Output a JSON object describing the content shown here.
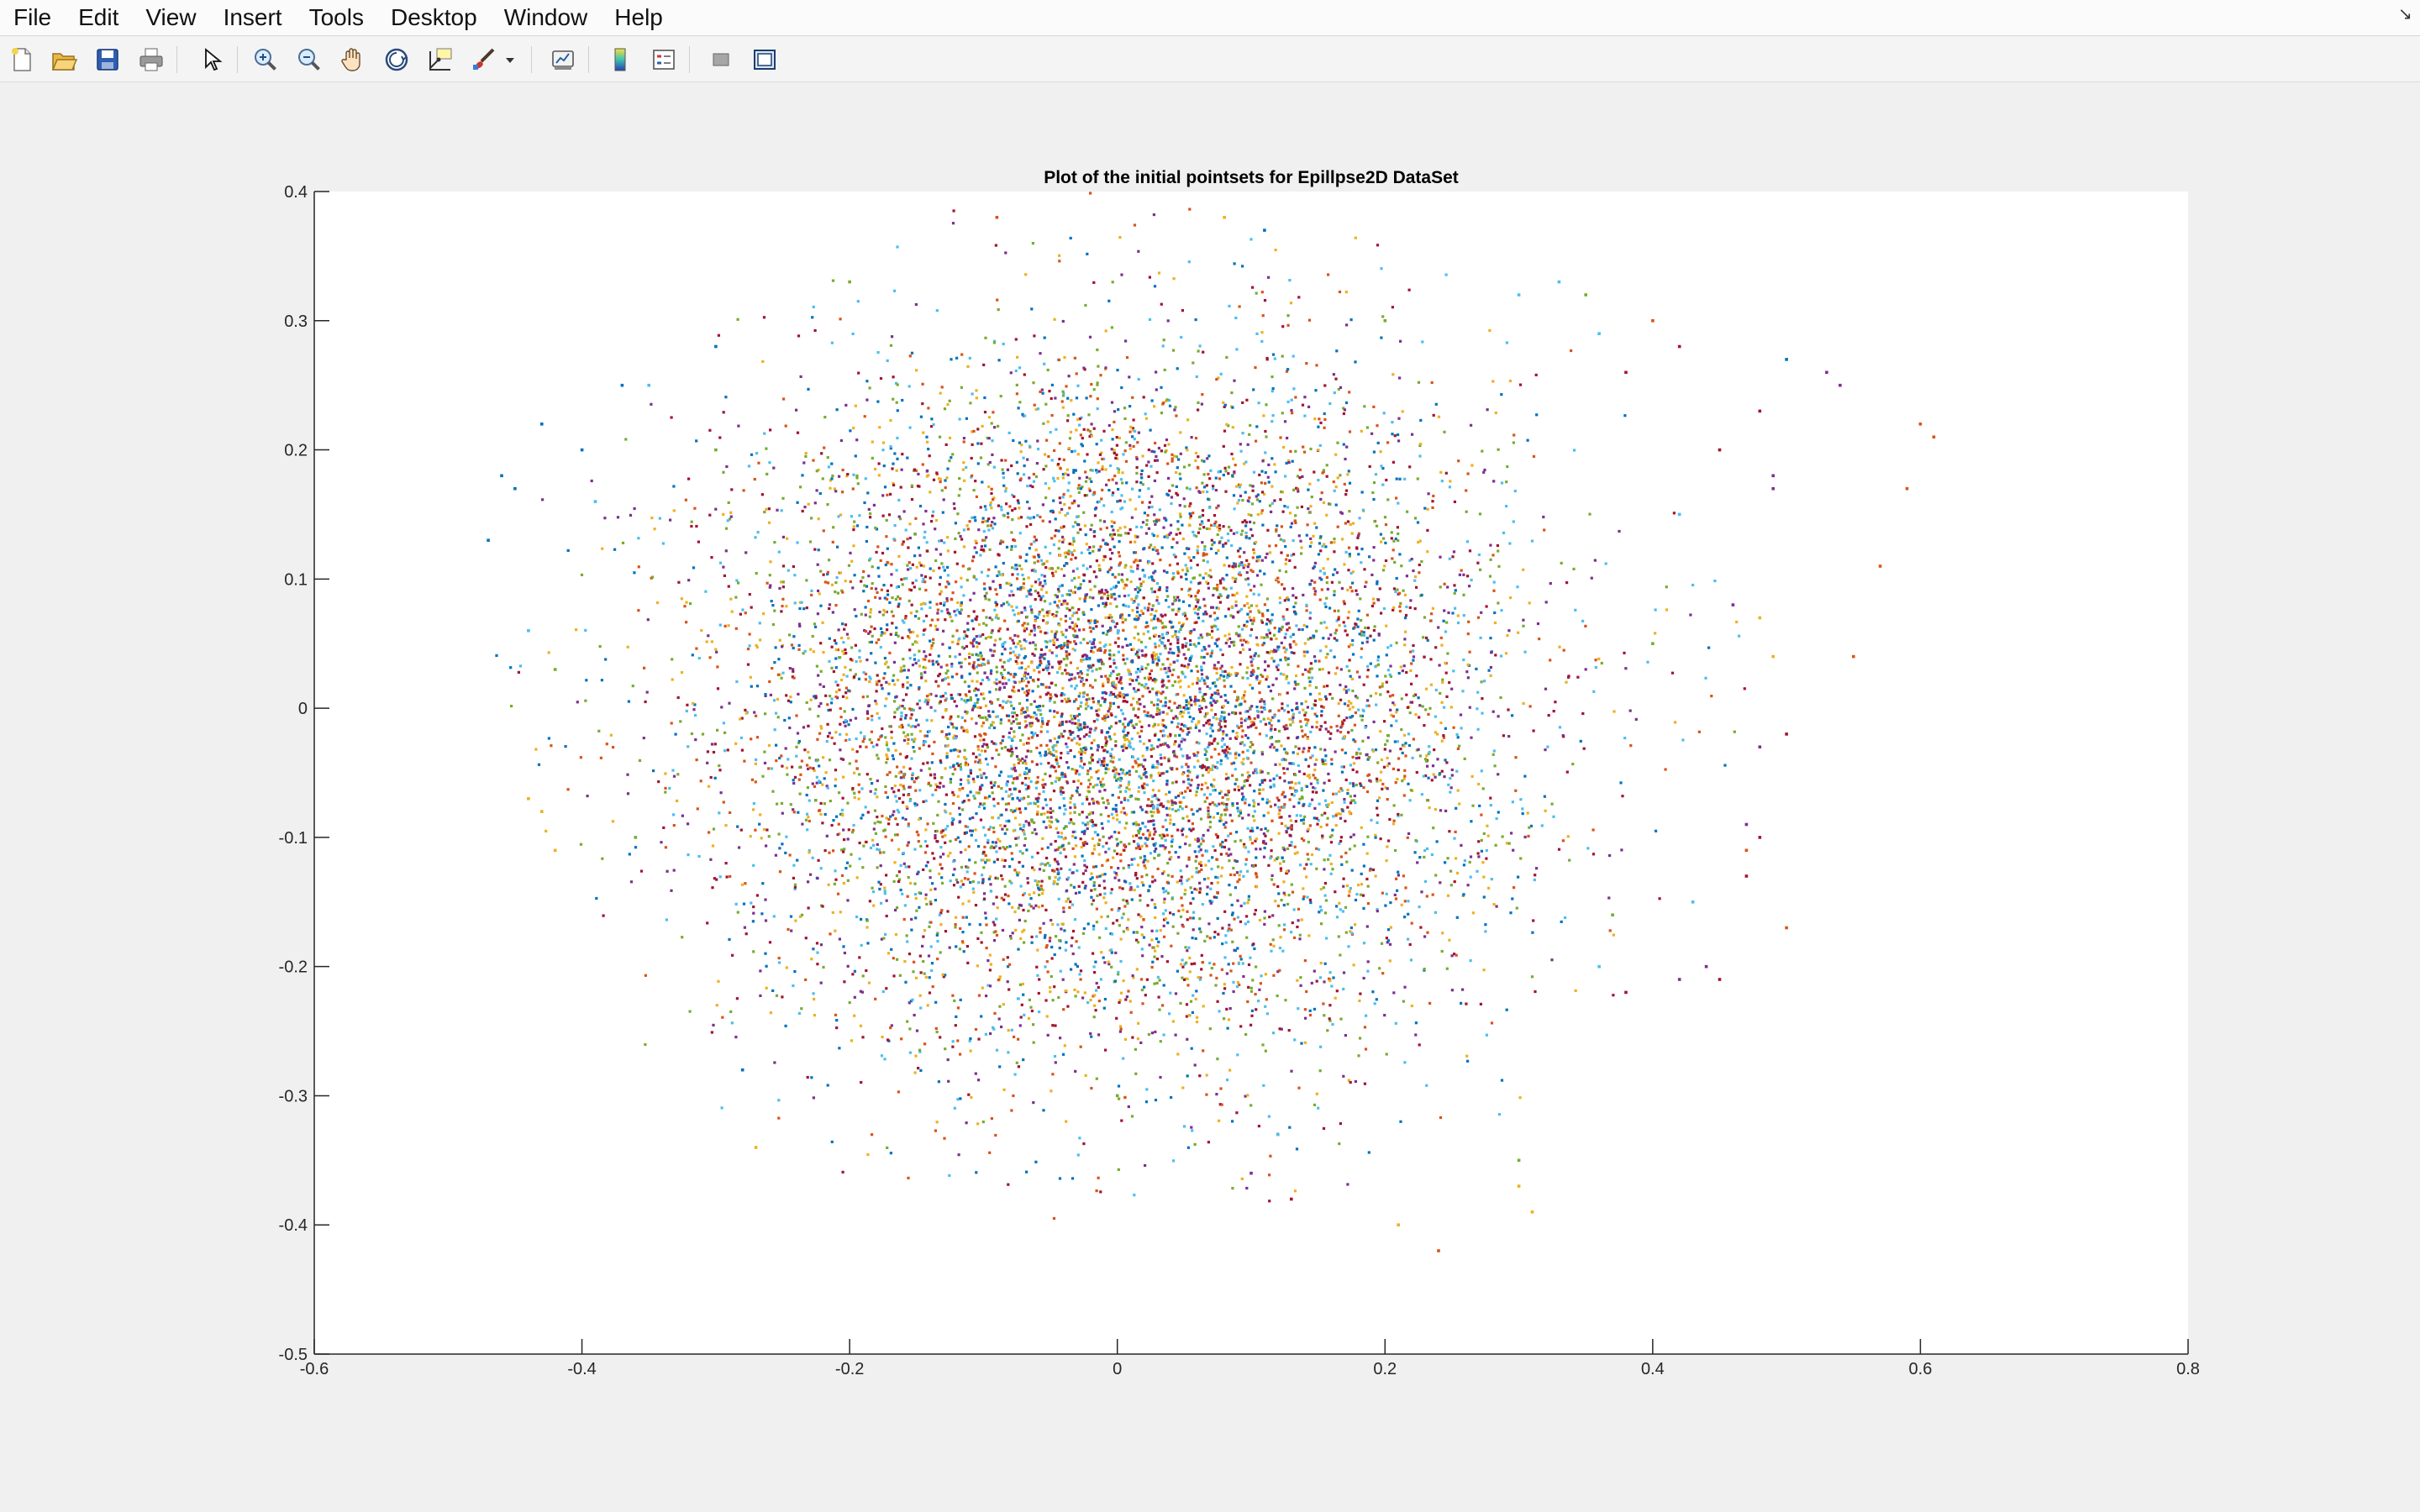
{
  "menubar": {
    "items": [
      {
        "label": "File"
      },
      {
        "label": "Edit"
      },
      {
        "label": "View"
      },
      {
        "label": "Insert"
      },
      {
        "label": "Tools"
      },
      {
        "label": "Desktop"
      },
      {
        "label": "Window"
      },
      {
        "label": "Help"
      }
    ]
  },
  "toolbar": {
    "icons": [
      "new-figure-icon",
      "open-file-icon",
      "save-icon",
      "print-icon",
      "select-arrow-icon",
      "zoom-in-icon",
      "zoom-out-icon",
      "pan-hand-icon",
      "rotate-3d-icon",
      "data-cursor-icon",
      "brush-icon",
      "brush-dropdown-icon",
      "link-plot-icon",
      "colorbar-icon",
      "legend-icon",
      "hide-plot-tools-icon",
      "show-plot-tools-icon"
    ]
  },
  "colors": {
    "palette": [
      "#0072BD",
      "#D95319",
      "#EDB120",
      "#7E2F8E",
      "#77AC30",
      "#4DBEEE",
      "#A2142F"
    ],
    "axes_bg": "#ffffff",
    "figure_bg": "#f0f0f0"
  },
  "chart_data": {
    "type": "scatter",
    "title": "Plot of the initial pointsets for Epillpse2D DataSet",
    "xlabel": "",
    "ylabel": "",
    "xlim": [
      -0.6,
      0.8
    ],
    "ylim": [
      -0.5,
      0.4
    ],
    "xticks": [
      -0.6,
      -0.4,
      -0.2,
      0,
      0.2,
      0.4,
      0.6,
      0.8
    ],
    "yticks": [
      -0.5,
      -0.4,
      -0.3,
      -0.2,
      -0.1,
      0,
      0.1,
      0.2,
      0.3,
      0.4
    ],
    "xtick_labels": [
      "-0.6",
      "-0.4",
      "-0.2",
      "0",
      "0.2",
      "0.4",
      "0.6",
      "0.8"
    ],
    "ytick_labels": [
      "-0.5",
      "-0.4",
      "-0.3",
      "-0.2",
      "-0.1",
      "0",
      "0.1",
      "0.2",
      "0.3",
      "0.4"
    ],
    "grid": false,
    "legend": "none",
    "series_count": 7,
    "point_cloud": {
      "approx_points": 9000,
      "center": [
        0.0,
        0.0
      ],
      "extent_x": [
        -0.47,
        0.61
      ],
      "extent_y": [
        -0.42,
        0.38
      ]
    },
    "series": [
      {
        "color": "#0072BD",
        "points": [
          [
            -0.46,
            0.18
          ],
          [
            -0.45,
            0.17
          ],
          [
            -0.47,
            0.13
          ],
          [
            -0.43,
            0.22
          ],
          [
            -0.37,
            0.25
          ],
          [
            -0.4,
            0.2
          ],
          [
            0.11,
            0.37
          ],
          [
            -0.3,
            0.28
          ],
          [
            0.5,
            0.27
          ],
          [
            -0.28,
            -0.28
          ]
        ]
      },
      {
        "color": "#D95319",
        "points": [
          [
            0.6,
            0.22
          ],
          [
            0.61,
            0.21
          ],
          [
            0.59,
            0.17
          ],
          [
            0.57,
            0.11
          ],
          [
            0.55,
            0.04
          ],
          [
            0.5,
            -0.17
          ],
          [
            0.47,
            -0.11
          ],
          [
            0.4,
            0.3
          ],
          [
            0.24,
            -0.42
          ],
          [
            -0.09,
            0.38
          ]
        ]
      },
      {
        "color": "#EDB120",
        "points": [
          [
            -0.44,
            -0.07
          ],
          [
            -0.43,
            -0.08
          ],
          [
            -0.42,
            -0.11
          ],
          [
            0.3,
            -0.37
          ],
          [
            0.31,
            -0.39
          ],
          [
            0.48,
            0.07
          ],
          [
            0.49,
            0.04
          ],
          [
            0.21,
            -0.4
          ],
          [
            -0.27,
            -0.34
          ],
          [
            0.08,
            0.38
          ]
        ]
      },
      {
        "color": "#7E2F8E",
        "points": [
          [
            0.53,
            0.26
          ],
          [
            0.54,
            0.25
          ],
          [
            0.49,
            0.18
          ],
          [
            0.49,
            0.17
          ],
          [
            0.46,
            0.08
          ],
          [
            0.44,
            -0.2
          ],
          [
            0.42,
            -0.21
          ],
          [
            0.48,
            -0.03
          ],
          [
            0.47,
            -0.09
          ],
          [
            0.1,
            -0.36
          ]
        ]
      },
      {
        "color": "#77AC30",
        "points": [
          [
            -0.42,
            0.03
          ],
          [
            0.35,
            0.32
          ],
          [
            -0.2,
            0.33
          ],
          [
            0.37,
            -0.16
          ],
          [
            0.3,
            -0.35
          ],
          [
            -0.36,
            -0.1
          ],
          [
            0.4,
            0.05
          ],
          [
            -0.3,
            0.2
          ],
          [
            0.2,
            0.3
          ],
          [
            0.0,
            -0.3
          ]
        ]
      },
      {
        "color": "#4DBEEE",
        "points": [
          [
            0.33,
            0.33
          ],
          [
            0.36,
            0.29
          ],
          [
            -0.39,
            0.16
          ],
          [
            -0.44,
            0.06
          ],
          [
            0.42,
            0.15
          ],
          [
            0.43,
            -0.15
          ],
          [
            0.3,
            0.32
          ],
          [
            -0.35,
            0.25
          ],
          [
            0.36,
            -0.2
          ],
          [
            0.12,
            -0.33
          ]
        ]
      },
      {
        "color": "#A2142F",
        "points": [
          [
            0.45,
            0.2
          ],
          [
            0.48,
            0.23
          ],
          [
            0.5,
            -0.02
          ],
          [
            0.42,
            0.28
          ],
          [
            0.38,
            0.26
          ],
          [
            0.47,
            -0.13
          ],
          [
            0.45,
            -0.21
          ],
          [
            0.38,
            -0.22
          ],
          [
            0.48,
            -0.1
          ],
          [
            0.13,
            -0.38
          ]
        ]
      }
    ]
  }
}
